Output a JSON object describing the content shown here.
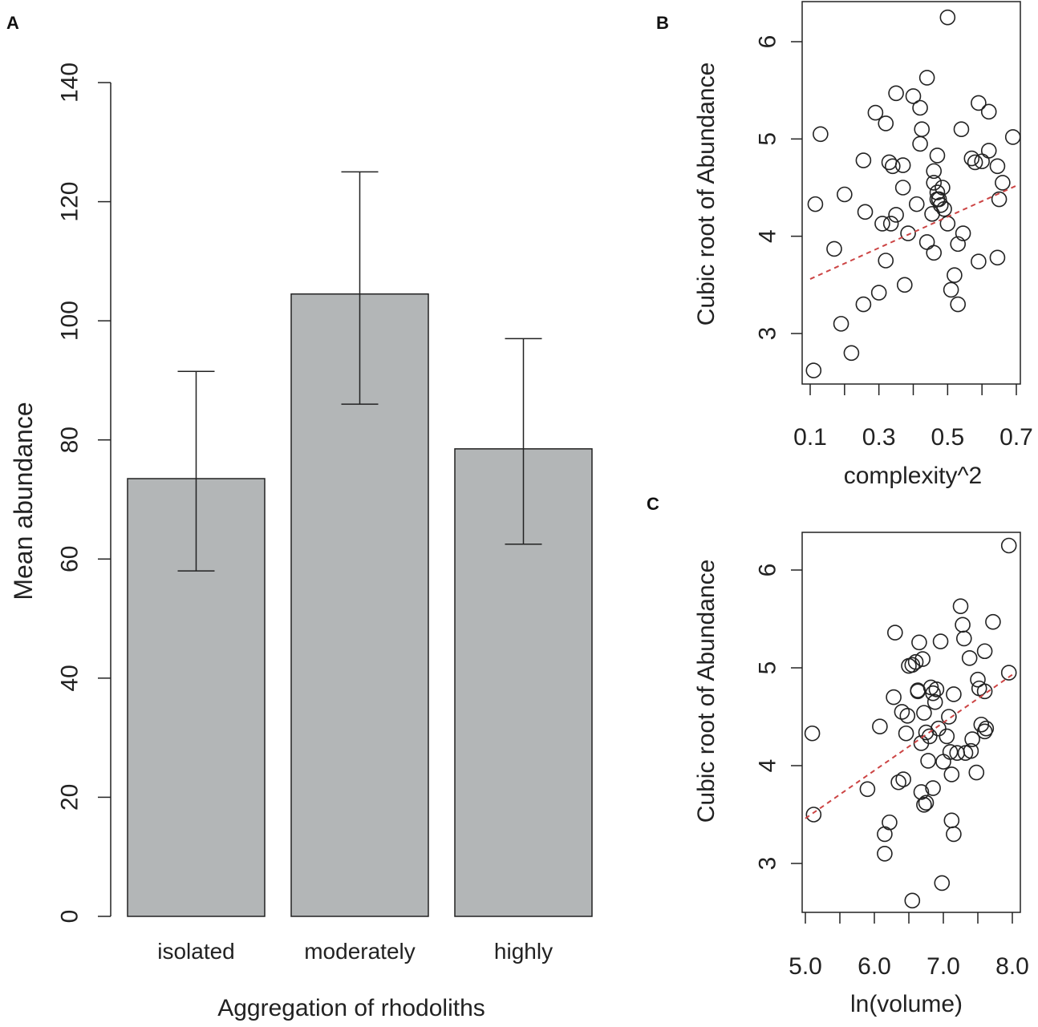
{
  "chart_data": [
    {
      "panel": "A",
      "type": "bar",
      "categories": [
        "isolated",
        "moderately",
        "highly"
      ],
      "values": [
        73.5,
        104.5,
        78.5
      ],
      "error_low": [
        58,
        86,
        62.5
      ],
      "error_high": [
        91.5,
        125,
        97
      ],
      "xlabel": "Aggregation of rhodoliths",
      "ylabel": "Mean abundance",
      "ylim": [
        0,
        140
      ],
      "yticks": [
        0,
        20,
        40,
        60,
        80,
        100,
        120,
        140
      ],
      "bar_color": "#b3b6b7"
    },
    {
      "panel": "B",
      "type": "scatter",
      "xlabel": "complexity^2",
      "ylabel": "Cubic root of Abundance",
      "xlim": [
        0.1,
        0.7
      ],
      "ylim": [
        2.5,
        6.4
      ],
      "xticks": [
        0.1,
        0.2,
        0.3,
        0.4,
        0.5,
        0.6,
        0.7
      ],
      "xtick_labels": [
        "0.1",
        "",
        "0.3",
        "",
        "0.5",
        "",
        "0.7"
      ],
      "yticks": [
        3,
        4,
        5,
        6
      ],
      "trend": {
        "x": [
          0.1,
          0.7
        ],
        "y": [
          3.56,
          4.52
        ],
        "color": "#cc4444"
      },
      "points": [
        [
          0.11,
          2.62
        ],
        [
          0.115,
          4.33
        ],
        [
          0.13,
          5.05
        ],
        [
          0.17,
          3.87
        ],
        [
          0.2,
          4.43
        ],
        [
          0.19,
          3.1
        ],
        [
          0.22,
          2.8
        ],
        [
          0.255,
          4.78
        ],
        [
          0.26,
          4.25
        ],
        [
          0.255,
          3.3
        ],
        [
          0.29,
          5.27
        ],
        [
          0.31,
          4.13
        ],
        [
          0.3,
          3.42
        ],
        [
          0.32,
          5.16
        ],
        [
          0.32,
          3.75
        ],
        [
          0.33,
          4.76
        ],
        [
          0.34,
          4.72
        ],
        [
          0.335,
          4.13
        ],
        [
          0.35,
          4.22
        ],
        [
          0.35,
          5.47
        ],
        [
          0.37,
          4.73
        ],
        [
          0.37,
          4.5
        ],
        [
          0.375,
          3.5
        ],
        [
          0.385,
          4.03
        ],
        [
          0.4,
          5.44
        ],
        [
          0.41,
          4.33
        ],
        [
          0.42,
          5.32
        ],
        [
          0.42,
          4.95
        ],
        [
          0.425,
          5.1
        ],
        [
          0.44,
          5.63
        ],
        [
          0.44,
          3.94
        ],
        [
          0.455,
          4.23
        ],
        [
          0.46,
          4.67
        ],
        [
          0.46,
          4.55
        ],
        [
          0.46,
          3.83
        ],
        [
          0.47,
          4.83
        ],
        [
          0.47,
          4.45
        ],
        [
          0.47,
          4.38
        ],
        [
          0.475,
          4.38
        ],
        [
          0.48,
          4.32
        ],
        [
          0.485,
          4.5
        ],
        [
          0.49,
          4.28
        ],
        [
          0.5,
          4.13
        ],
        [
          0.5,
          6.25
        ],
        [
          0.51,
          3.45
        ],
        [
          0.52,
          3.6
        ],
        [
          0.53,
          3.92
        ],
        [
          0.53,
          3.3
        ],
        [
          0.54,
          5.1
        ],
        [
          0.545,
          4.03
        ],
        [
          0.57,
          4.8
        ],
        [
          0.58,
          4.76
        ],
        [
          0.59,
          5.37
        ],
        [
          0.59,
          3.74
        ],
        [
          0.6,
          4.77
        ],
        [
          0.62,
          5.28
        ],
        [
          0.62,
          4.88
        ],
        [
          0.645,
          4.72
        ],
        [
          0.645,
          3.78
        ],
        [
          0.65,
          4.38
        ],
        [
          0.66,
          4.55
        ],
        [
          0.69,
          5.02
        ]
      ]
    },
    {
      "panel": "C",
      "type": "scatter",
      "xlabel": "ln(volume)",
      "ylabel": "Cubic root of Abundance",
      "xlim": [
        5.0,
        8.0
      ],
      "ylim": [
        2.5,
        6.4
      ],
      "xticks": [
        5.0,
        5.5,
        6.0,
        6.5,
        7.0,
        7.5,
        8.0
      ],
      "xtick_labels": [
        "5.0",
        "",
        "6.0",
        "",
        "7.0",
        "",
        "8.0"
      ],
      "yticks": [
        3,
        4,
        5,
        6
      ],
      "trend": {
        "x": [
          5.0,
          8.0
        ],
        "y": [
          3.46,
          4.93
        ],
        "color": "#cc4444"
      },
      "points": [
        [
          5.1,
          4.33
        ],
        [
          5.12,
          3.5
        ],
        [
          5.9,
          3.76
        ],
        [
          6.08,
          4.4
        ],
        [
          6.15,
          3.3
        ],
        [
          6.15,
          3.1
        ],
        [
          6.22,
          3.42
        ],
        [
          6.3,
          5.36
        ],
        [
          6.28,
          4.7
        ],
        [
          6.35,
          3.83
        ],
        [
          6.4,
          4.55
        ],
        [
          6.42,
          3.86
        ],
        [
          6.46,
          4.33
        ],
        [
          6.48,
          4.51
        ],
        [
          6.5,
          5.02
        ],
        [
          6.55,
          5.03
        ],
        [
          6.55,
          2.62
        ],
        [
          6.6,
          5.06
        ],
        [
          6.63,
          4.77
        ],
        [
          6.65,
          5.26
        ],
        [
          6.63,
          4.76
        ],
        [
          6.68,
          4.23
        ],
        [
          6.68,
          3.73
        ],
        [
          6.7,
          5.09
        ],
        [
          6.72,
          4.54
        ],
        [
          6.75,
          4.34
        ],
        [
          6.72,
          3.6
        ],
        [
          6.75,
          3.62
        ],
        [
          6.78,
          4.05
        ],
        [
          6.8,
          4.3
        ],
        [
          6.82,
          4.8
        ],
        [
          6.85,
          4.74
        ],
        [
          6.88,
          4.65
        ],
        [
          6.85,
          3.77
        ],
        [
          6.9,
          4.78
        ],
        [
          6.93,
          4.38
        ],
        [
          6.96,
          5.27
        ],
        [
          6.98,
          2.8
        ],
        [
          7.0,
          4.04
        ],
        [
          7.05,
          4.3
        ],
        [
          7.08,
          4.5
        ],
        [
          7.1,
          4.14
        ],
        [
          7.12,
          3.44
        ],
        [
          7.15,
          3.3
        ],
        [
          7.12,
          3.91
        ],
        [
          7.15,
          4.73
        ],
        [
          7.2,
          4.13
        ],
        [
          7.25,
          5.63
        ],
        [
          7.28,
          5.44
        ],
        [
          7.3,
          5.3
        ],
        [
          7.32,
          4.13
        ],
        [
          7.38,
          5.1
        ],
        [
          7.4,
          4.15
        ],
        [
          7.42,
          4.27
        ],
        [
          7.48,
          3.93
        ],
        [
          7.5,
          4.88
        ],
        [
          7.52,
          4.79
        ],
        [
          7.55,
          4.42
        ],
        [
          7.6,
          5.17
        ],
        [
          7.6,
          4.76
        ],
        [
          7.62,
          4.38
        ],
        [
          7.6,
          4.35
        ],
        [
          7.72,
          5.47
        ],
        [
          7.95,
          6.25
        ],
        [
          7.95,
          4.95
        ]
      ]
    }
  ]
}
